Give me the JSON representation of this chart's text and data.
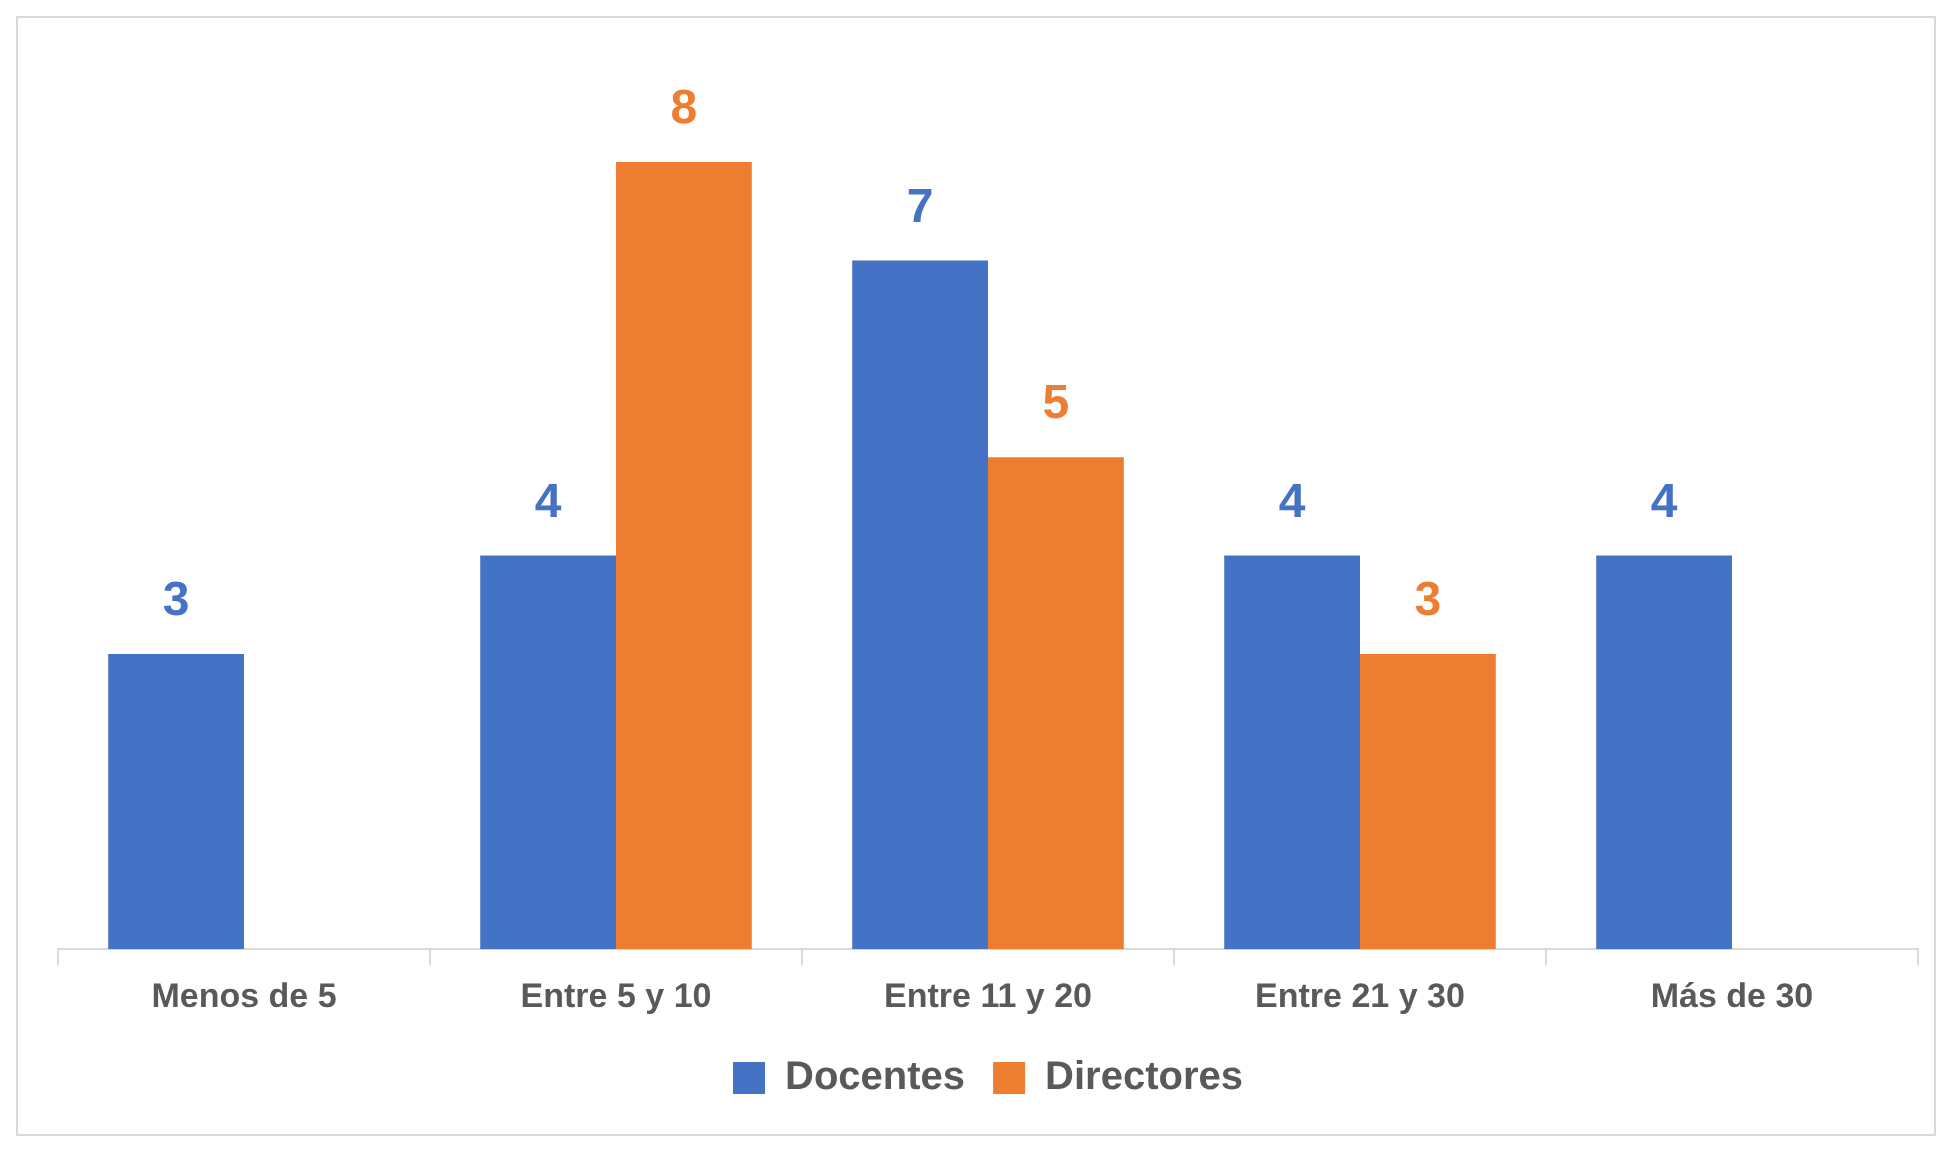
{
  "chart_data": {
    "type": "bar",
    "categories": [
      "Menos de 5",
      "Entre 5 y 10",
      "Entre 11 y 20",
      "Entre 21 y 30",
      "Más de 30"
    ],
    "series": [
      {
        "name": "Docentes",
        "color": "#4472c4",
        "values": [
          3,
          4,
          7,
          4,
          4
        ]
      },
      {
        "name": "Directores",
        "color": "#ed7d31",
        "values": [
          null,
          8,
          5,
          3,
          null
        ]
      }
    ],
    "data_labels": true,
    "legend": "bottom",
    "grid": false
  }
}
